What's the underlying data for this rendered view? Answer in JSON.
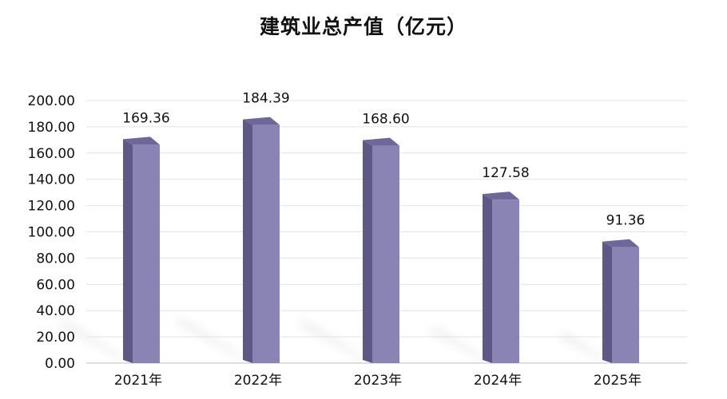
{
  "chart_data": {
    "type": "bar",
    "title": "建筑业总产值（亿元）",
    "xlabel": "",
    "ylabel": "",
    "categories": [
      "2021年",
      "2022年",
      "2023年",
      "2024年",
      "2025年"
    ],
    "values": [
      169.36,
      184.39,
      168.6,
      127.58,
      91.36
    ],
    "value_labels": [
      "169.36",
      "184.39",
      "168.60",
      "127.58",
      "91.36"
    ],
    "ylim": [
      0,
      200
    ],
    "yticks": [
      "0.00",
      "20.00",
      "40.00",
      "60.00",
      "80.00",
      "100.00",
      "120.00",
      "140.00",
      "160.00",
      "180.00",
      "200.00"
    ],
    "grid": true,
    "legend": "none",
    "bar_color_front": "#8A84B5",
    "bar_color_side": "#5E5886",
    "bar_color_top": "#6E6899",
    "grid_color": "#E4E4E4",
    "shadow_color": "#D6D6D6"
  }
}
